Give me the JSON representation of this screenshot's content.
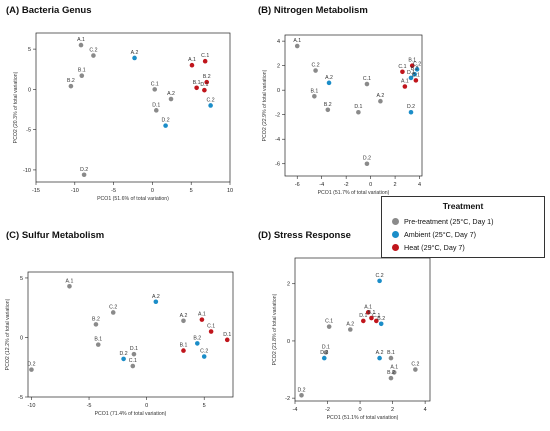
{
  "legend": {
    "title": "Treatment",
    "items": [
      {
        "label": "Pre-treatment (25°C, Day 1)",
        "color": "#8a8a8a"
      },
      {
        "label": "Ambient (25°C, Day 7)",
        "color": "#1b8dc8"
      },
      {
        "label": "Heat (29°C, Day 7)",
        "color": "#c0151c"
      }
    ]
  },
  "chart_data": [
    {
      "type": "scatter",
      "title": "(A) Bacteria Genus",
      "xlabel": "PCO1 (51.6% of total variation)",
      "ylabel": "PCO2 (20.3% of total variation)",
      "xlim": [
        -15,
        10
      ],
      "ylim": [
        -11.5,
        7
      ],
      "xticks": [
        -15,
        -10,
        -5,
        0,
        5,
        10
      ],
      "yticks": [
        -10,
        -5,
        0,
        5
      ],
      "points": [
        {
          "label": "A.1",
          "x": -9.2,
          "y": 5.5,
          "group": "pre"
        },
        {
          "label": "C.2",
          "x": -7.6,
          "y": 4.2,
          "group": "pre"
        },
        {
          "label": "B.1",
          "x": -9.1,
          "y": 1.7,
          "group": "pre"
        },
        {
          "label": "B.2",
          "x": -10.5,
          "y": 0.4,
          "group": "pre"
        },
        {
          "label": "A.2",
          "x": -2.3,
          "y": 3.9,
          "group": "amb"
        },
        {
          "label": "C.1",
          "x": 0.3,
          "y": 0.0,
          "group": "pre"
        },
        {
          "label": "A.2",
          "x": 2.4,
          "y": -1.2,
          "group": "pre"
        },
        {
          "label": "D.1",
          "x": 0.5,
          "y": -2.6,
          "group": "pre"
        },
        {
          "label": "D.2",
          "x": 1.7,
          "y": -4.5,
          "group": "amb"
        },
        {
          "label": "A.1",
          "x": 5.1,
          "y": 3.0,
          "group": "heat"
        },
        {
          "label": "C.1",
          "x": 6.8,
          "y": 3.5,
          "group": "heat"
        },
        {
          "label": "B.1",
          "x": 5.7,
          "y": 0.2,
          "group": "heat"
        },
        {
          "label": "B.2",
          "x": 7.0,
          "y": 0.9,
          "group": "heat"
        },
        {
          "label": "D.1",
          "x": 6.7,
          "y": -0.1,
          "group": "heat"
        },
        {
          "label": "C.2",
          "x": 7.5,
          "y": -2.0,
          "group": "amb"
        },
        {
          "label": "D.2",
          "x": -8.8,
          "y": -10.6,
          "group": "pre"
        }
      ]
    },
    {
      "type": "scatter",
      "title": "(B) Nitrogen Metabolism",
      "xlabel": "PCO1 (51.7% of total variation)",
      "ylabel": "PCO2 (22.9% of total variation)",
      "xlim": [
        -7,
        4.2
      ],
      "ylim": [
        -7,
        4.5
      ],
      "xticks": [
        -6,
        -4,
        -2,
        0,
        2,
        4
      ],
      "yticks": [
        -6,
        -4,
        -2,
        0,
        2,
        4
      ],
      "points": [
        {
          "label": "A.1",
          "x": -6.0,
          "y": 3.6,
          "group": "pre"
        },
        {
          "label": "C.2",
          "x": -4.5,
          "y": 1.6,
          "group": "pre"
        },
        {
          "label": "A.2",
          "x": -3.4,
          "y": 0.6,
          "group": "amb"
        },
        {
          "label": "B.1",
          "x": -4.6,
          "y": -0.5,
          "group": "pre"
        },
        {
          "label": "B.2",
          "x": -3.5,
          "y": -1.6,
          "group": "pre"
        },
        {
          "label": "D.1",
          "x": -1.0,
          "y": -1.8,
          "group": "pre"
        },
        {
          "label": "C.1",
          "x": -0.3,
          "y": 0.5,
          "group": "pre"
        },
        {
          "label": "A.2",
          "x": 0.8,
          "y": -0.9,
          "group": "pre"
        },
        {
          "label": "C.1",
          "x": 2.6,
          "y": 1.5,
          "group": "heat"
        },
        {
          "label": "B.1",
          "x": 3.4,
          "y": 2.0,
          "group": "heat"
        },
        {
          "label": "C.2",
          "x": 3.8,
          "y": 1.7,
          "group": "amb"
        },
        {
          "label": "B.2",
          "x": 3.6,
          "y": 1.3,
          "group": "amb"
        },
        {
          "label": "D.1",
          "x": 3.3,
          "y": 1.0,
          "group": "amb"
        },
        {
          "label": "A.1",
          "x": 2.8,
          "y": 0.3,
          "group": "heat"
        },
        {
          "label": "D.1",
          "x": 3.7,
          "y": 0.8,
          "group": "heat"
        },
        {
          "label": "D.2",
          "x": 3.3,
          "y": -1.8,
          "group": "amb"
        },
        {
          "label": "D.2",
          "x": -0.3,
          "y": -6.0,
          "group": "pre"
        }
      ]
    },
    {
      "type": "scatter",
      "title": "(C) Sulfur Metabolism",
      "xlabel": "PCO1 (71.4% of total variation)",
      "ylabel": "PCO2 (12.2% of total variation)",
      "xlim": [
        -10.3,
        7.5
      ],
      "ylim": [
        -5,
        5.5
      ],
      "xticks": [
        -10,
        -5,
        0,
        5
      ],
      "yticks": [
        -5,
        0,
        5
      ],
      "points": [
        {
          "label": "A.1",
          "x": -6.7,
          "y": 4.3,
          "group": "pre"
        },
        {
          "label": "C.2",
          "x": -2.9,
          "y": 2.1,
          "group": "pre"
        },
        {
          "label": "A.2",
          "x": 0.8,
          "y": 3.0,
          "group": "amb"
        },
        {
          "label": "B.2",
          "x": -4.4,
          "y": 1.1,
          "group": "pre"
        },
        {
          "label": "B.1",
          "x": -4.2,
          "y": -0.6,
          "group": "pre"
        },
        {
          "label": "D.2",
          "x": -2.0,
          "y": -1.8,
          "group": "amb"
        },
        {
          "label": "D.1",
          "x": -1.1,
          "y": -1.4,
          "group": "pre"
        },
        {
          "label": "C.1",
          "x": -1.2,
          "y": -2.4,
          "group": "pre"
        },
        {
          "label": "A.2",
          "x": 3.2,
          "y": 1.4,
          "group": "pre"
        },
        {
          "label": "A.1",
          "x": 4.8,
          "y": 1.5,
          "group": "heat"
        },
        {
          "label": "C.1",
          "x": 5.6,
          "y": 0.5,
          "group": "heat"
        },
        {
          "label": "D.1",
          "x": 7.0,
          "y": -0.2,
          "group": "heat"
        },
        {
          "label": "B.1",
          "x": 3.2,
          "y": -1.1,
          "group": "heat"
        },
        {
          "label": "B.2",
          "x": 4.4,
          "y": -0.5,
          "group": "amb"
        },
        {
          "label": "C.2",
          "x": 5.0,
          "y": -1.6,
          "group": "amb"
        },
        {
          "label": "D.2",
          "x": -10.0,
          "y": -2.7,
          "group": "pre"
        }
      ]
    },
    {
      "type": "scatter",
      "title": "(D) Stress Response",
      "xlabel": "PCO1 (51.1% of total variation)",
      "ylabel": "PCO2 (21.8% of total variation)",
      "xlim": [
        -4,
        4.3
      ],
      "ylim": [
        -2.1,
        2.9
      ],
      "xticks": [
        -4,
        -2,
        0,
        2,
        4
      ],
      "yticks": [
        -2,
        0,
        2
      ],
      "points": [
        {
          "label": "C.2",
          "x": 1.2,
          "y": 2.1,
          "group": "amb"
        },
        {
          "label": "C.1",
          "x": -1.9,
          "y": 0.5,
          "group": "pre"
        },
        {
          "label": "A.1",
          "x": 0.5,
          "y": 1.0,
          "group": "heat"
        },
        {
          "label": "D.1",
          "x": 0.2,
          "y": 0.7,
          "group": "heat"
        },
        {
          "label": "B.1",
          "x": 0.7,
          "y": 0.8,
          "group": "heat"
        },
        {
          "label": "C.1",
          "x": 1.0,
          "y": 0.7,
          "group": "heat"
        },
        {
          "label": "B.2",
          "x": 1.3,
          "y": 0.6,
          "group": "amb"
        },
        {
          "label": "A.2",
          "x": -0.6,
          "y": 0.4,
          "group": "pre"
        },
        {
          "label": "D.1",
          "x": -2.1,
          "y": -0.4,
          "group": "pre"
        },
        {
          "label": "D.2",
          "x": -2.2,
          "y": -0.6,
          "group": "amb"
        },
        {
          "label": "A.2",
          "x": 1.2,
          "y": -0.6,
          "group": "amb"
        },
        {
          "label": "B.1",
          "x": 1.9,
          "y": -0.6,
          "group": "pre"
        },
        {
          "label": "A.1",
          "x": 2.1,
          "y": -1.1,
          "group": "pre"
        },
        {
          "label": "B.2",
          "x": 1.9,
          "y": -1.3,
          "group": "pre"
        },
        {
          "label": "C.2",
          "x": 3.4,
          "y": -1.0,
          "group": "pre"
        },
        {
          "label": "D.2",
          "x": -3.6,
          "y": -1.9,
          "group": "pre"
        }
      ]
    }
  ]
}
